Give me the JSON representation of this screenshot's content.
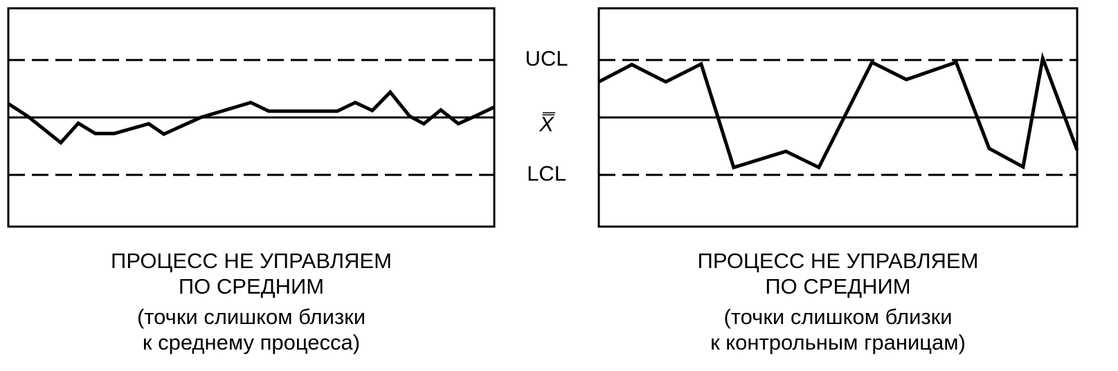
{
  "chart_data": [
    {
      "type": "line",
      "caption": [
        "ПРОЦЕСС НЕ УПРАВЛЯЕМ",
        "ПО СРЕДНИМ",
        "(точки слишком близки",
        "к среднему процесса)"
      ],
      "xlim": [
        0,
        100
      ],
      "ylim": [
        -1.9,
        1.9
      ],
      "yticks": [
        -1,
        0,
        1
      ],
      "color": "#000000",
      "x": [
        0,
        4,
        10.8,
        14.4,
        17.9,
        21.8,
        28.9,
        32,
        39.6,
        49.9,
        53.6,
        67.7,
        71.4,
        74.9,
        78.6,
        82.6,
        85.5,
        89,
        92.6,
        96,
        100
      ],
      "values": [
        0.24,
        0.02,
        -0.44,
        -0.1,
        -0.28,
        -0.28,
        -0.11,
        -0.29,
        0,
        0.26,
        0.11,
        0.11,
        0.26,
        0.12,
        0.44,
        0.02,
        -0.11,
        0.13,
        -0.11,
        0.02,
        0.18
      ]
    },
    {
      "type": "line",
      "caption": [
        "ПРОЦЕСС НЕ УПРАВЛЯЕМ",
        "ПО СРЕДНИМ",
        "(точки слишком близки",
        "к контрольным границам)"
      ],
      "xlim": [
        0,
        100
      ],
      "ylim": [
        -1.9,
        1.9
      ],
      "yticks": [
        {
          "value": -1,
          "label": "LCL"
        },
        {
          "value": 0,
          "label": "X̿"
        },
        {
          "value": 1,
          "label": "UCL"
        }
      ],
      "color": "#000000",
      "x": [
        0,
        6.9,
        14,
        21.4,
        28.2,
        39.1,
        46,
        57.1,
        64.3,
        74.7,
        81.6,
        88.7,
        92.8,
        100
      ],
      "values": [
        0.62,
        0.92,
        0.62,
        0.93,
        -0.87,
        -0.59,
        -0.87,
        0.96,
        0.66,
        0.96,
        -0.54,
        -0.86,
        1.03,
        -0.57
      ]
    }
  ]
}
